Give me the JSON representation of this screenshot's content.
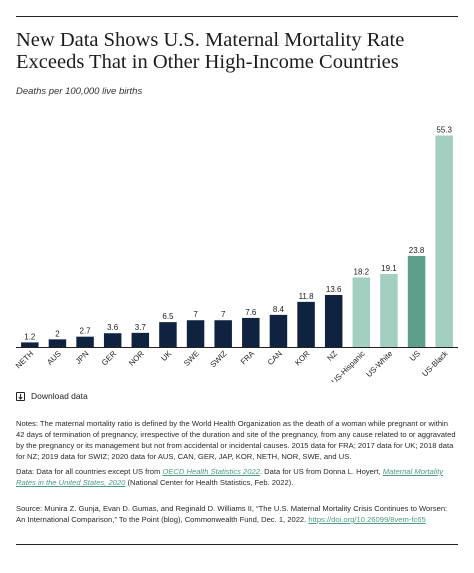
{
  "header": {
    "title": "New Data Shows U.S. Maternal Mortality Rate Exceeds That in Other High-Income Countries"
  },
  "chart_data": {
    "type": "bar",
    "ylabel": "Deaths per 100,000 live births",
    "categories": [
      "NETH",
      "AUS",
      "JPN",
      "GER",
      "NOR",
      "UK",
      "SWE",
      "SWIZ",
      "FRA",
      "CAN",
      "KOR",
      "NZ",
      "US-Hispanic",
      "US-White",
      "US",
      "US-Black"
    ],
    "values": [
      1.2,
      2,
      2.7,
      3.6,
      3.7,
      6.5,
      7,
      7,
      7.6,
      8.4,
      11.8,
      13.6,
      18.2,
      19.1,
      23.8,
      55.3
    ],
    "value_labels": [
      "1.2",
      "2",
      "2.7",
      "3.6",
      "3.7",
      "6.5",
      "7",
      "7",
      "7.6",
      "8.4",
      "11.8",
      "13.6",
      "18.2",
      "19.1",
      "23.8",
      "55.3"
    ],
    "ylim": [
      0,
      57
    ],
    "grid": false,
    "colors": {
      "countries": "#0f2340",
      "us": "#5e9f8c",
      "us_groups": "#a3cfc1",
      "baseline": "#222222"
    },
    "bar_colors": [
      "countries",
      "countries",
      "countries",
      "countries",
      "countries",
      "countries",
      "countries",
      "countries",
      "countries",
      "countries",
      "countries",
      "countries",
      "us_groups",
      "us_groups",
      "us",
      "us_groups"
    ]
  },
  "download": {
    "icon": "download-icon",
    "label": "Download data"
  },
  "notes": {
    "text": "Notes: The maternal mortality ratio is defined by the World Health Organization as the death of a woman while pregnant or within 42 days of termination of pregnancy, irrespective of the duration and site of the pregnancy, from any cause related to or aggravated by the pregnancy or its management but not from accidental or incidental causes. 2015 data for FRA; 2017 data for UK; 2018 data for NZ; 2019 data for SWIZ; 2020 data for AUS, CAN, GER, JAP, KOR, NETH, NOR, SWE, and US."
  },
  "data_source": {
    "prefix": "Data: Data for all countries except US from ",
    "oecd_link": "OECD Health Statistics 2022",
    "middle": ". Data for US from Donna L. Hoyert, ",
    "hoyert_link": "Maternal Mortality Rates in the United States, 2020",
    "suffix": " (National Center for Health Statistics, Feb. 2022)."
  },
  "source": {
    "text": "Source: Munira Z. Gunja, Evan D. Gumas, and Reginald D. Williams II, “The U.S. Maternal Mortality Crisis Continues to Worsen: An International Comparison,” To the Point (blog), Commonwealth Fund, Dec. 1, 2022. ",
    "doi_link": "https://doi.org/10.26099/8vem-fc65"
  }
}
